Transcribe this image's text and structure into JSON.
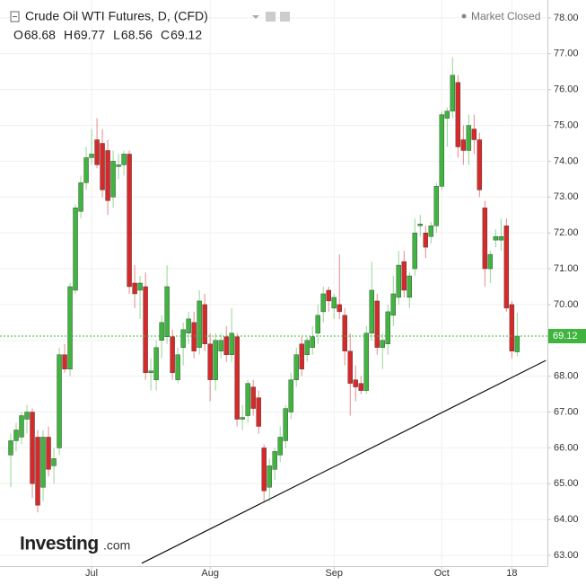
{
  "chart_data": {
    "type": "candlestick",
    "title": "Crude Oil WTI Futures, D, (CFD)",
    "status": "Market Closed",
    "ohlc_header": [
      {
        "label": "O",
        "value": 68.68
      },
      {
        "label": "H",
        "value": 69.77
      },
      {
        "label": "L",
        "value": 68.56
      },
      {
        "label": "C",
        "value": 69.12
      }
    ],
    "watermark": [
      "Investing",
      ".com"
    ],
    "categories": [
      null,
      null,
      null,
      null,
      null,
      null,
      null,
      null,
      null,
      null,
      null,
      null,
      null,
      null,
      null,
      "Jul",
      null,
      null,
      null,
      null,
      null,
      null,
      null,
      null,
      null,
      null,
      null,
      null,
      null,
      null,
      null,
      null,
      null,
      null,
      null,
      null,
      null,
      "Aug",
      null,
      null,
      null,
      null,
      null,
      null,
      null,
      null,
      null,
      null,
      null,
      null,
      null,
      null,
      null,
      null,
      null,
      null,
      null,
      null,
      null,
      null,
      "Sep",
      null,
      null,
      null,
      null,
      null,
      null,
      null,
      null,
      null,
      null,
      null,
      null,
      null,
      null,
      null,
      null,
      null,
      null,
      null,
      "Oct",
      null,
      null,
      null,
      null,
      null,
      null,
      null,
      null,
      null,
      null,
      null,
      null,
      "18",
      null
    ],
    "ohlc": [
      [
        65.8,
        66.4,
        64.9,
        66.2
      ],
      [
        66.2,
        66.7,
        65.9,
        66.5
      ],
      [
        66.3,
        67.0,
        66.1,
        66.9
      ],
      [
        66.8,
        67.2,
        66.4,
        67.0
      ],
      [
        67.0,
        67.1,
        64.6,
        65.0
      ],
      [
        66.3,
        66.5,
        64.2,
        64.4
      ],
      [
        64.9,
        66.5,
        64.5,
        66.3
      ],
      [
        66.3,
        66.6,
        65.2,
        65.4
      ],
      [
        65.5,
        66.0,
        65.0,
        65.7
      ],
      [
        66.0,
        68.8,
        65.8,
        68.6
      ],
      [
        68.6,
        68.9,
        68.1,
        68.2
      ],
      [
        68.2,
        70.6,
        68.0,
        70.5
      ],
      [
        70.4,
        72.8,
        70.3,
        72.7
      ],
      [
        72.6,
        73.6,
        72.4,
        73.4
      ],
      [
        73.4,
        74.4,
        73.2,
        74.1
      ],
      [
        74.1,
        74.9,
        73.9,
        74.2
      ],
      [
        74.6,
        75.2,
        73.8,
        73.9
      ],
      [
        74.5,
        74.9,
        73.0,
        73.2
      ],
      [
        74.3,
        74.6,
        72.5,
        72.9
      ],
      [
        73.0,
        74.3,
        72.7,
        74.0
      ],
      [
        73.85,
        74.2,
        73.5,
        73.9
      ],
      [
        73.9,
        74.3,
        73.6,
        74.2
      ],
      [
        74.2,
        74.3,
        70.3,
        70.5
      ],
      [
        70.6,
        71.1,
        69.9,
        70.3
      ],
      [
        70.4,
        70.8,
        69.6,
        70.6
      ],
      [
        70.5,
        70.9,
        67.9,
        68.1
      ],
      [
        68.1,
        68.5,
        67.6,
        68.15
      ],
      [
        67.9,
        69.0,
        67.6,
        68.8
      ],
      [
        69.0,
        69.7,
        68.5,
        69.5
      ],
      [
        69.1,
        71.1,
        68.9,
        70.5
      ],
      [
        69.1,
        69.3,
        67.9,
        68.1
      ],
      [
        67.9,
        68.8,
        67.8,
        68.6
      ],
      [
        68.8,
        69.5,
        68.3,
        69.3
      ],
      [
        69.2,
        69.8,
        68.9,
        69.6
      ],
      [
        69.5,
        69.8,
        68.5,
        68.7
      ],
      [
        68.8,
        70.4,
        68.6,
        70.1
      ],
      [
        70.0,
        70.3,
        68.7,
        68.9
      ],
      [
        68.9,
        69.2,
        67.3,
        67.9
      ],
      [
        67.9,
        69.2,
        67.6,
        69.0
      ],
      [
        68.7,
        69.2,
        68.5,
        69.0
      ],
      [
        69.1,
        69.4,
        68.4,
        68.6
      ],
      [
        68.6,
        69.9,
        68.4,
        69.2
      ],
      [
        69.1,
        69.2,
        66.6,
        66.8
      ],
      [
        66.8,
        67.2,
        66.5,
        66.85
      ],
      [
        66.9,
        67.9,
        66.7,
        67.8
      ],
      [
        67.7,
        67.9,
        66.9,
        67.1
      ],
      [
        67.4,
        67.6,
        66.4,
        66.6
      ],
      [
        66.0,
        66.1,
        64.5,
        64.8
      ],
      [
        64.9,
        65.7,
        64.5,
        65.5
      ],
      [
        65.4,
        66.0,
        65.1,
        65.9
      ],
      [
        65.8,
        66.6,
        65.6,
        66.3
      ],
      [
        66.2,
        67.2,
        66.0,
        67.1
      ],
      [
        67.0,
        68.1,
        66.8,
        67.9
      ],
      [
        67.9,
        68.8,
        67.7,
        68.6
      ],
      [
        68.9,
        69.1,
        68.0,
        68.2
      ],
      [
        68.6,
        69.1,
        68.4,
        69.0
      ],
      [
        68.8,
        69.4,
        68.6,
        69.1
      ],
      [
        69.2,
        70.0,
        68.9,
        69.7
      ],
      [
        69.8,
        70.5,
        69.5,
        70.3
      ],
      [
        70.4,
        70.5,
        69.8,
        70.1
      ],
      [
        69.9,
        70.3,
        69.6,
        70.2
      ],
      [
        70.0,
        71.4,
        69.6,
        69.8
      ],
      [
        69.7,
        69.9,
        68.3,
        68.7
      ],
      [
        68.7,
        69.2,
        66.9,
        67.8
      ],
      [
        67.9,
        68.3,
        67.3,
        67.7
      ],
      [
        67.8,
        68.0,
        67.5,
        67.6
      ],
      [
        67.6,
        69.4,
        67.5,
        69.2
      ],
      [
        69.2,
        71.2,
        69.0,
        70.4
      ],
      [
        70.1,
        70.3,
        68.6,
        68.8
      ],
      [
        68.8,
        69.2,
        68.2,
        69.0
      ],
      [
        68.9,
        70.0,
        68.6,
        69.8
      ],
      [
        69.7,
        70.8,
        69.4,
        70.3
      ],
      [
        70.2,
        71.5,
        70.0,
        71.1
      ],
      [
        71.2,
        71.5,
        70.2,
        70.4
      ],
      [
        70.2,
        70.9,
        69.9,
        70.8
      ],
      [
        71.0,
        72.4,
        70.8,
        72.0
      ],
      [
        72.2,
        72.5,
        71.9,
        72.25
      ],
      [
        72.0,
        72.2,
        71.3,
        71.6
      ],
      [
        71.9,
        72.3,
        71.7,
        72.2
      ],
      [
        72.2,
        73.4,
        72.0,
        73.3
      ],
      [
        73.3,
        75.4,
        73.2,
        75.3
      ],
      [
        75.2,
        75.5,
        74.4,
        75.4
      ],
      [
        75.4,
        76.9,
        75.2,
        76.4
      ],
      [
        76.2,
        76.4,
        74.1,
        74.4
      ],
      [
        74.6,
        75.0,
        73.9,
        74.3
      ],
      [
        74.3,
        75.3,
        73.9,
        75.0
      ],
      [
        74.9,
        75.3,
        74.2,
        74.6
      ],
      [
        74.6,
        74.8,
        73.0,
        73.2
      ],
      [
        72.7,
        72.9,
        70.5,
        71.0
      ],
      [
        71.0,
        71.5,
        70.6,
        71.4
      ],
      [
        71.8,
        72.1,
        71.6,
        71.9
      ],
      [
        71.8,
        72.4,
        71.5,
        71.9
      ],
      [
        72.2,
        72.4,
        69.8,
        69.9
      ],
      [
        70.0,
        70.1,
        68.5,
        68.7
      ],
      [
        68.68,
        69.77,
        68.56,
        69.12
      ]
    ],
    "up_color": "#3fb53f",
    "down_color": "#d62a2a",
    "trendline": {
      "x": [
        24.3,
        99.3
      ],
      "y": [
        62.78,
        68.44
      ],
      "color": "#111111"
    },
    "xlim": [
      -2,
      99.6
    ],
    "ylim": [
      62.7,
      78.5
    ],
    "yticks": [
      {
        "value": 63,
        "label": "63.00"
      },
      {
        "value": 64,
        "label": "64.00"
      },
      {
        "value": 65,
        "label": "65.00"
      },
      {
        "value": 66,
        "label": "66.00"
      },
      {
        "value": 67,
        "label": "67.00"
      },
      {
        "value": 68,
        "label": "68.00"
      },
      {
        "value": 69,
        "label": "69.00"
      },
      {
        "value": 70,
        "label": "70.00"
      },
      {
        "value": 71,
        "label": "71.00"
      },
      {
        "value": 72,
        "label": "72.00"
      },
      {
        "value": 73,
        "label": "73.00"
      },
      {
        "value": 74,
        "label": "74.00"
      },
      {
        "value": 75,
        "label": "75.00"
      },
      {
        "value": 76,
        "label": "76.00"
      },
      {
        "value": 77,
        "label": "77.00"
      },
      {
        "value": 78,
        "label": "78.00"
      }
    ],
    "grid": true
  }
}
